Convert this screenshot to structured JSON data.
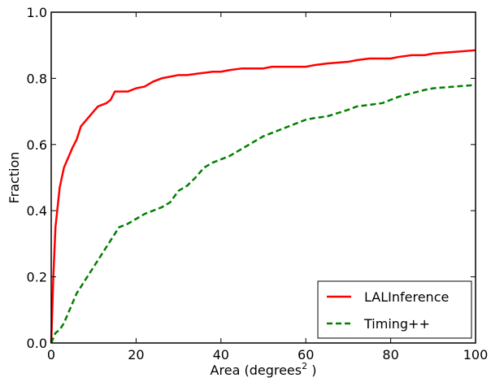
{
  "chart_data": {
    "type": "line",
    "xlabel": "Area (degrees",
    "xlabel_superscript": "2",
    "xlabel_suffix": " )",
    "ylabel": "Fraction",
    "xlim": [
      0,
      100
    ],
    "ylim": [
      0,
      1.0
    ],
    "xticks": [
      0,
      20,
      40,
      60,
      80,
      100
    ],
    "yticks": [
      0.0,
      0.2,
      0.4,
      0.6,
      0.8,
      1.0
    ],
    "xtick_labels": [
      "0",
      "20",
      "40",
      "60",
      "80",
      "100"
    ],
    "ytick_labels": [
      "0.0",
      "0.2",
      "0.4",
      "0.6",
      "0.8",
      "1.0"
    ],
    "grid": false,
    "legend_position": "bottom-right",
    "series": [
      {
        "name": "LALInference",
        "color": "#ff0000",
        "style": "solid",
        "x": [
          0,
          0.5,
          1,
          2,
          3,
          4,
          5,
          6,
          7,
          8,
          9,
          10,
          11,
          12,
          13,
          14,
          15,
          16,
          18,
          20,
          22,
          24,
          26,
          28,
          30,
          32,
          35,
          38,
          40,
          42,
          45,
          50,
          52,
          55,
          60,
          62,
          65,
          70,
          72,
          75,
          80,
          82,
          85,
          88,
          90,
          95,
          100
        ],
        "y": [
          0.0,
          0.2,
          0.35,
          0.47,
          0.53,
          0.56,
          0.59,
          0.615,
          0.655,
          0.67,
          0.685,
          0.7,
          0.715,
          0.72,
          0.725,
          0.735,
          0.76,
          0.76,
          0.76,
          0.77,
          0.775,
          0.79,
          0.8,
          0.805,
          0.81,
          0.81,
          0.815,
          0.82,
          0.82,
          0.825,
          0.83,
          0.83,
          0.835,
          0.835,
          0.835,
          0.84,
          0.845,
          0.85,
          0.855,
          0.86,
          0.86,
          0.865,
          0.87,
          0.87,
          0.875,
          0.88,
          0.885
        ]
      },
      {
        "name": "Timing++",
        "color": "#008000",
        "style": "dashed",
        "x": [
          0,
          1,
          2,
          3,
          4,
          5,
          6,
          8,
          10,
          12,
          14,
          15,
          16,
          18,
          20,
          22,
          24,
          26,
          28,
          30,
          32,
          34,
          36,
          38,
          40,
          42,
          44,
          46,
          48,
          50,
          52,
          55,
          58,
          60,
          62,
          65,
          70,
          72,
          75,
          78,
          80,
          82,
          85,
          88,
          90,
          95,
          100
        ],
        "y": [
          0.0,
          0.03,
          0.04,
          0.06,
          0.09,
          0.12,
          0.15,
          0.19,
          0.23,
          0.27,
          0.31,
          0.33,
          0.35,
          0.36,
          0.375,
          0.39,
          0.4,
          0.41,
          0.425,
          0.46,
          0.475,
          0.5,
          0.53,
          0.545,
          0.555,
          0.565,
          0.58,
          0.595,
          0.61,
          0.625,
          0.635,
          0.65,
          0.665,
          0.675,
          0.68,
          0.685,
          0.705,
          0.715,
          0.72,
          0.725,
          0.735,
          0.745,
          0.755,
          0.765,
          0.77,
          0.775,
          0.78
        ]
      }
    ]
  }
}
